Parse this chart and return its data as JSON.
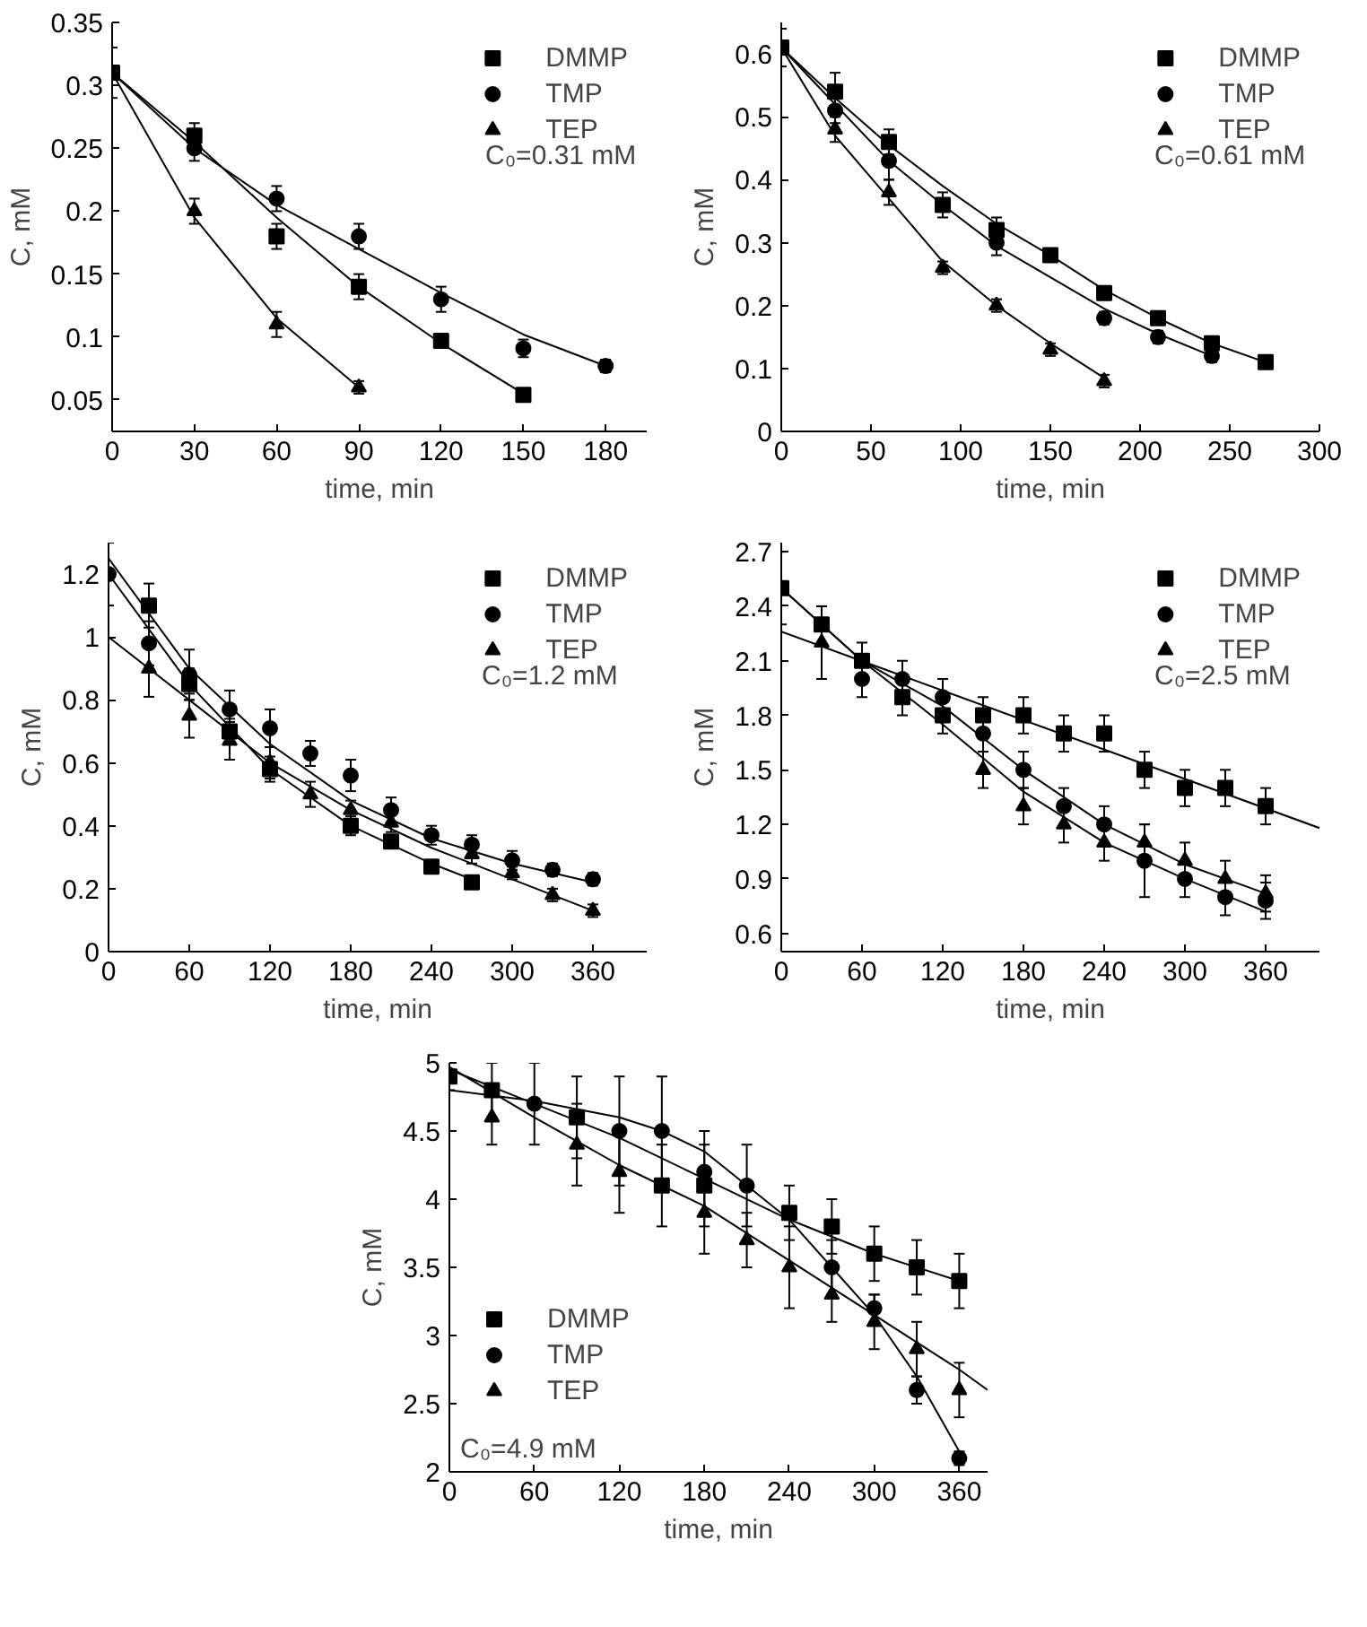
{
  "chart_data": [
    {
      "type": "scatter",
      "xlabel": "time, min",
      "ylabel": "C, mM",
      "xlim": [
        0,
        195
      ],
      "ylim": [
        0.025,
        0.35
      ],
      "xticks": [
        0,
        30,
        60,
        90,
        120,
        150,
        180
      ],
      "yticks": [
        0.05,
        0.1,
        0.15,
        0.2,
        0.25,
        0.3,
        0.35
      ],
      "grid": false,
      "legend": "top right",
      "annotations": [
        "C₀=0.31 mM"
      ],
      "series": [
        {
          "name": "DMMP",
          "color": "#000000",
          "marker": "square",
          "x": [
            0,
            30,
            60,
            90,
            120,
            150
          ],
          "values": [
            0.31,
            0.26,
            0.18,
            0.14,
            0.097,
            0.054
          ],
          "errors": [
            0.02,
            0.01,
            0.01,
            0.01,
            0.005,
            0.005
          ]
        },
        {
          "name": "TMP",
          "color": "#000000",
          "marker": "circle",
          "x": [
            30,
            60,
            90,
            120,
            150,
            180
          ],
          "values": [
            0.25,
            0.21,
            0.18,
            0.13,
            0.091,
            0.077
          ],
          "errors": [
            0.01,
            0.01,
            0.01,
            0.01,
            0.007,
            0.005
          ]
        },
        {
          "name": "TEP",
          "color": "#000000",
          "marker": "triangle",
          "x": [
            30,
            60,
            90
          ],
          "values": [
            0.2,
            0.11,
            0.06
          ],
          "errors": [
            0.01,
            0.01,
            0.005
          ]
        },
        {
          "type": "line",
          "color": "#000000",
          "x": [
            0,
            30,
            60,
            90,
            120,
            150
          ],
          "values": [
            0.31,
            0.255,
            0.195,
            0.14,
            0.095,
            0.055
          ]
        },
        {
          "type": "line",
          "color": "#000000",
          "x": [
            0,
            30,
            60,
            90,
            120,
            150,
            180
          ],
          "values": [
            0.31,
            0.25,
            0.205,
            0.17,
            0.135,
            0.102,
            0.077
          ]
        },
        {
          "type": "line",
          "color": "#000000",
          "x": [
            0,
            30,
            60,
            90
          ],
          "values": [
            0.31,
            0.195,
            0.115,
            0.06
          ]
        }
      ]
    },
    {
      "type": "scatter",
      "xlabel": "time, min",
      "ylabel": "C, mM",
      "xlim": [
        0,
        300
      ],
      "ylim": [
        0,
        0.65
      ],
      "xticks": [
        0,
        50,
        100,
        150,
        200,
        250,
        300
      ],
      "yticks": [
        0.0,
        0.1,
        0.2,
        0.3,
        0.4,
        0.5,
        0.6
      ],
      "grid": false,
      "legend": "top right",
      "annotations": [
        "C₀=0.61 mM"
      ],
      "series": [
        {
          "name": "DMMP",
          "color": "#000000",
          "marker": "square",
          "x": [
            0,
            30,
            60,
            90,
            120,
            150,
            180,
            210,
            240,
            270
          ],
          "values": [
            0.61,
            0.54,
            0.46,
            0.36,
            0.32,
            0.28,
            0.22,
            0.18,
            0.14,
            0.11
          ],
          "errors": [
            0.03,
            0.03,
            0.02,
            0.02,
            0.02,
            0.01,
            0.01,
            0.01,
            0.01,
            0.01
          ]
        },
        {
          "name": "TMP",
          "color": "#000000",
          "marker": "circle",
          "x": [
            30,
            60,
            120,
            180,
            210,
            240
          ],
          "values": [
            0.51,
            0.43,
            0.3,
            0.18,
            0.15,
            0.12
          ],
          "errors": [
            0.02,
            0.03,
            0.02,
            0.01,
            0.01,
            0.01
          ]
        },
        {
          "name": "TEP",
          "color": "#000000",
          "marker": "triangle",
          "x": [
            30,
            60,
            90,
            120,
            150,
            180
          ],
          "values": [
            0.48,
            0.38,
            0.26,
            0.2,
            0.13,
            0.08
          ],
          "errors": [
            0.02,
            0.02,
            0.01,
            0.01,
            0.01,
            0.01
          ]
        },
        {
          "type": "line",
          "color": "#000000",
          "x": [
            0,
            30,
            60,
            90,
            120,
            150,
            180,
            210,
            240,
            270
          ],
          "values": [
            0.61,
            0.53,
            0.455,
            0.39,
            0.33,
            0.28,
            0.225,
            0.18,
            0.14,
            0.11
          ]
        },
        {
          "type": "line",
          "color": "#000000",
          "x": [
            0,
            30,
            60,
            90,
            120,
            150,
            180,
            210,
            240
          ],
          "values": [
            0.61,
            0.52,
            0.43,
            0.36,
            0.295,
            0.245,
            0.195,
            0.155,
            0.12
          ]
        },
        {
          "type": "line",
          "color": "#000000",
          "x": [
            0,
            30,
            60,
            90,
            120,
            150,
            180
          ],
          "values": [
            0.61,
            0.47,
            0.37,
            0.27,
            0.2,
            0.14,
            0.085
          ]
        }
      ]
    },
    {
      "type": "scatter",
      "xlabel": "time, min",
      "ylabel": "C, mM",
      "xlim": [
        0,
        400
      ],
      "ylim": [
        0,
        1.3
      ],
      "xticks": [
        0,
        60,
        120,
        180,
        240,
        300,
        360
      ],
      "yticks": [
        0.0,
        0.2,
        0.4,
        0.6,
        0.8,
        1.0,
        1.2
      ],
      "grid": false,
      "legend": "top right",
      "annotations": [
        "C₀=1.2 mM"
      ],
      "series": [
        {
          "name": "DMMP",
          "color": "#000000",
          "marker": "square",
          "x": [
            30,
            60,
            90,
            120,
            180,
            210,
            240,
            270
          ],
          "values": [
            1.1,
            0.85,
            0.7,
            0.58,
            0.4,
            0.35,
            0.27,
            0.22
          ],
          "errors": [
            0.07,
            0.05,
            0.04,
            0.04,
            0.03,
            0.02,
            0.02,
            0.02
          ]
        },
        {
          "name": "TMP",
          "color": "#000000",
          "marker": "circle",
          "x": [
            0,
            30,
            60,
            90,
            120,
            150,
            180,
            210,
            240,
            270,
            300,
            330,
            360
          ],
          "values": [
            1.2,
            0.98,
            0.88,
            0.77,
            0.71,
            0.63,
            0.56,
            0.45,
            0.37,
            0.34,
            0.29,
            0.26,
            0.23
          ],
          "errors": [
            0.1,
            0.07,
            0.08,
            0.06,
            0.06,
            0.04,
            0.05,
            0.04,
            0.03,
            0.03,
            0.03,
            0.02,
            0.02
          ]
        },
        {
          "name": "TEP",
          "color": "#000000",
          "marker": "triangle",
          "x": [
            30,
            60,
            90,
            120,
            150,
            180,
            210,
            270,
            300,
            330,
            360
          ],
          "values": [
            0.9,
            0.75,
            0.67,
            0.6,
            0.5,
            0.45,
            0.41,
            0.31,
            0.25,
            0.18,
            0.13
          ],
          "errors": [
            0.09,
            0.07,
            0.06,
            0.05,
            0.04,
            0.03,
            0.03,
            0.03,
            0.02,
            0.02,
            0.02
          ]
        },
        {
          "type": "line",
          "color": "#000000",
          "x": [
            0,
            60,
            120,
            180,
            240,
            300,
            360
          ],
          "values": [
            1.25,
            0.9,
            0.66,
            0.48,
            0.36,
            0.28,
            0.22
          ]
        },
        {
          "type": "line",
          "color": "#000000",
          "x": [
            0,
            60,
            120,
            180,
            240,
            270
          ],
          "values": [
            1.2,
            0.85,
            0.58,
            0.4,
            0.28,
            0.23
          ]
        },
        {
          "type": "line",
          "color": "#000000",
          "x": [
            0,
            60,
            120,
            180,
            240,
            300,
            360
          ],
          "values": [
            1.0,
            0.8,
            0.6,
            0.45,
            0.33,
            0.23,
            0.13
          ]
        }
      ]
    },
    {
      "type": "scatter",
      "xlabel": "time, min",
      "ylabel": "C, mM",
      "xlim": [
        0,
        400
      ],
      "ylim": [
        0.5,
        2.75
      ],
      "xticks": [
        0,
        60,
        120,
        180,
        240,
        300,
        360
      ],
      "yticks": [
        0.6,
        0.9,
        1.2,
        1.5,
        1.8,
        2.1,
        2.4,
        2.7
      ],
      "grid": false,
      "legend": "top right",
      "annotations": [
        "C₀=2.5 mM"
      ],
      "series": [
        {
          "name": "DMMP",
          "color": "#000000",
          "marker": "square",
          "x": [
            0,
            30,
            60,
            90,
            120,
            150,
            180,
            210,
            240,
            270,
            300,
            330,
            360
          ],
          "values": [
            2.5,
            2.3,
            2.1,
            1.9,
            1.8,
            1.8,
            1.8,
            1.7,
            1.7,
            1.5,
            1.4,
            1.4,
            1.3
          ],
          "errors": [
            0.2,
            0.1,
            0.1,
            0.1,
            0.1,
            0.1,
            0.1,
            0.1,
            0.1,
            0.1,
            0.1,
            0.1,
            0.1
          ]
        },
        {
          "name": "TMP",
          "color": "#000000",
          "marker": "circle",
          "x": [
            60,
            90,
            120,
            150,
            180,
            210,
            240,
            270,
            300,
            330,
            360
          ],
          "values": [
            2.0,
            2.0,
            1.9,
            1.7,
            1.5,
            1.3,
            1.2,
            1.0,
            0.9,
            0.8,
            0.78
          ],
          "errors": [
            0.1,
            0.1,
            0.1,
            0.1,
            0.1,
            0.1,
            0.1,
            0.2,
            0.1,
            0.1,
            0.1
          ]
        },
        {
          "name": "TEP",
          "color": "#000000",
          "marker": "triangle",
          "x": [
            30,
            150,
            180,
            210,
            240,
            270,
            300,
            330,
            360
          ],
          "values": [
            2.2,
            1.5,
            1.3,
            1.2,
            1.1,
            1.1,
            1.0,
            0.9,
            0.82
          ],
          "errors": [
            0.2,
            0.1,
            0.1,
            0.1,
            0.1,
            0.1,
            0.1,
            0.1,
            0.1
          ]
        },
        {
          "type": "line",
          "color": "#000000",
          "x": [
            0,
            400
          ],
          "values": [
            2.26,
            1.18
          ]
        },
        {
          "type": "line",
          "color": "#000000",
          "x": [
            0,
            60,
            120,
            180,
            240,
            300,
            360
          ],
          "values": [
            2.5,
            2.1,
            1.85,
            1.5,
            1.2,
            0.98,
            0.82
          ]
        },
        {
          "type": "line",
          "color": "#000000",
          "x": [
            0,
            60,
            120,
            180,
            240,
            300,
            360
          ],
          "values": [
            2.5,
            2.1,
            1.75,
            1.38,
            1.1,
            0.9,
            0.72
          ]
        }
      ]
    },
    {
      "type": "scatter",
      "xlabel": "time, min",
      "ylabel": "C, mM",
      "xlim": [
        0,
        380
      ],
      "ylim": [
        2.0,
        5.0
      ],
      "xticks": [
        0,
        60,
        120,
        180,
        240,
        300,
        360
      ],
      "yticks": [
        2.0,
        2.5,
        3.0,
        3.5,
        4.0,
        4.5,
        5.0
      ],
      "grid": false,
      "legend": "bottom left",
      "annotations": [
        "C₀=4.9 mM"
      ],
      "series": [
        {
          "name": "DMMP",
          "color": "#000000",
          "marker": "square",
          "x": [
            0,
            30,
            90,
            150,
            180,
            240,
            270,
            300,
            330,
            360
          ],
          "values": [
            4.9,
            4.8,
            4.6,
            4.1,
            4.1,
            3.9,
            3.8,
            3.6,
            3.5,
            3.4
          ],
          "errors": [
            0.1,
            0.2,
            0.3,
            0.3,
            0.3,
            0.2,
            0.2,
            0.2,
            0.2,
            0.2
          ]
        },
        {
          "name": "TMP",
          "color": "#000000",
          "marker": "circle",
          "x": [
            60,
            120,
            150,
            180,
            210,
            270,
            300,
            330,
            360
          ],
          "values": [
            4.7,
            4.5,
            4.5,
            4.2,
            4.1,
            3.5,
            3.2,
            2.6,
            2.1
          ],
          "errors": [
            0.3,
            0.4,
            0.4,
            0.3,
            0.3,
            0.2,
            0.1,
            0.1,
            0.05
          ]
        },
        {
          "name": "TEP",
          "color": "#000000",
          "marker": "triangle",
          "x": [
            30,
            90,
            120,
            180,
            210,
            240,
            270,
            300,
            330,
            360
          ],
          "values": [
            4.6,
            4.4,
            4.2,
            3.9,
            3.7,
            3.5,
            3.3,
            3.1,
            2.9,
            2.6
          ],
          "errors": [
            0.2,
            0.3,
            0.3,
            0.3,
            0.2,
            0.3,
            0.2,
            0.2,
            0.2,
            0.2
          ]
        },
        {
          "type": "line",
          "color": "#000000",
          "x": [
            0,
            60,
            120,
            180,
            240,
            300,
            360
          ],
          "values": [
            4.95,
            4.7,
            4.45,
            4.15,
            3.85,
            3.6,
            3.4
          ]
        },
        {
          "type": "line",
          "color": "#000000",
          "x": [
            0,
            60,
            120,
            150,
            180,
            210,
            240,
            270,
            300,
            330,
            360
          ],
          "values": [
            4.8,
            4.72,
            4.6,
            4.5,
            4.35,
            4.1,
            3.85,
            3.5,
            3.15,
            2.7,
            2.15
          ]
        },
        {
          "type": "line",
          "color": "#000000",
          "x": [
            0,
            60,
            120,
            180,
            240,
            300,
            360,
            380
          ],
          "values": [
            4.97,
            4.6,
            4.25,
            3.95,
            3.55,
            3.15,
            2.75,
            2.6
          ]
        }
      ]
    }
  ]
}
